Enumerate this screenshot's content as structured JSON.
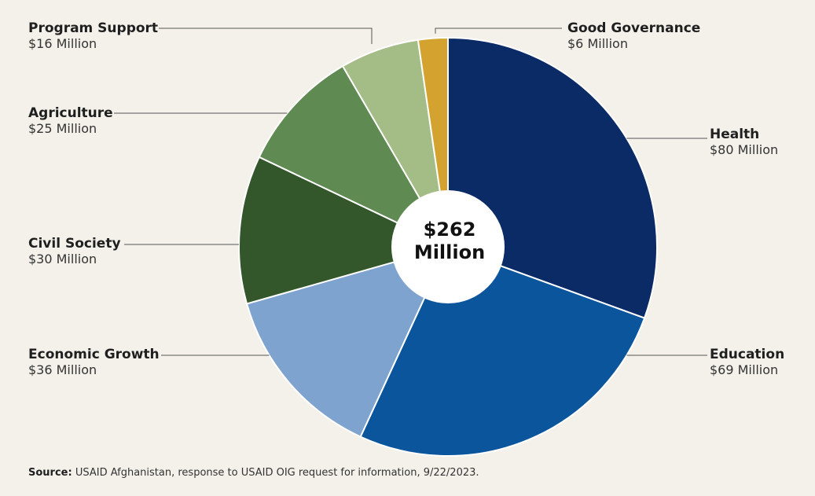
{
  "chart_data": {
    "type": "pie",
    "title": "",
    "center_label": [
      "$262",
      "Million"
    ],
    "unit": "Million",
    "slices": [
      {
        "label": "Health",
        "value": 80,
        "display": "$80 Million",
        "color": "#0a2b66"
      },
      {
        "label": "Education",
        "value": 69,
        "display": "$69 Million",
        "color": "#0b559d"
      },
      {
        "label": "Economic Growth",
        "value": 36,
        "display": "$36 Million",
        "color": "#7fa3cf"
      },
      {
        "label": "Civil Society",
        "value": 30,
        "display": "$30 Million",
        "color": "#33572b"
      },
      {
        "label": "Agriculture",
        "value": 25,
        "display": "$25 Million",
        "color": "#5f8a52"
      },
      {
        "label": "Program Support",
        "value": 16,
        "display": "$16 Million",
        "color": "#a4bc86"
      },
      {
        "label": "Good Governance",
        "value": 6,
        "display": "$6 Million",
        "color": "#d4a32f"
      }
    ]
  },
  "source": {
    "prefix": "Source:",
    "text": "USAID Afghanistan, response to USAID OIG request for information, 9/22/2023."
  }
}
